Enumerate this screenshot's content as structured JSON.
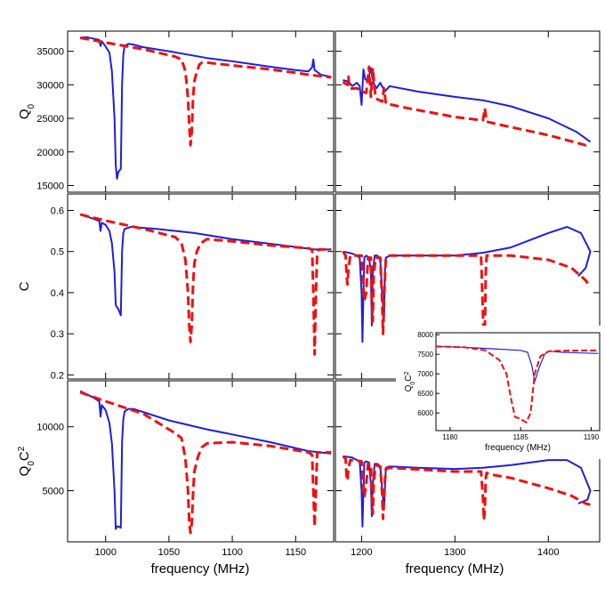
{
  "chart_data": {
    "type": "line",
    "colors": {
      "series_a": "#1f1fdc",
      "series_b": "#ee1111",
      "frame": "#000000"
    },
    "x_label": "frequency (MHz)",
    "row_labels": [
      {
        "main": "Q",
        "sub": "0",
        "rest": "",
        "sup": ""
      },
      {
        "main": "C",
        "sub": "",
        "rest": "",
        "sup": ""
      },
      {
        "main": "Q",
        "sub": "0",
        "rest": "C",
        "sup": "2"
      }
    ],
    "x_ranges": {
      "left": [
        970,
        1180
      ],
      "right": [
        1172,
        1455
      ]
    },
    "x_ticks": {
      "left": [
        1000,
        1050,
        1100,
        1150
      ],
      "left_labels": [
        "1000",
        "1050",
        "1100",
        "1150"
      ],
      "right": [
        1200,
        1300,
        1400
      ],
      "right_labels": [
        "1200",
        "1300",
        "1400"
      ]
    },
    "rows": [
      {
        "ylim": [
          14000,
          38000
        ],
        "yticks": [
          15000,
          20000,
          25000,
          30000,
          35000
        ],
        "ytick_labels": [
          "15000",
          "20000",
          "25000",
          "30000",
          "35000"
        ],
        "series": [
          {
            "name": "solid",
            "style": "solid",
            "x": [
              980,
              985,
              990,
              995,
              996,
              997,
              1000,
              1003,
              1005,
              1007,
              1008,
              1009,
              1010,
              1012,
              1013,
              1014,
              1015,
              1018,
              1022,
              1030,
              1050,
              1080,
              1100,
              1130,
              1150,
              1160,
              1163,
              1164,
              1165,
              1170,
              1178
            ],
            "y": [
              37000,
              37100,
              36900,
              36700,
              35800,
              36500,
              35700,
              34800,
              32000,
              25000,
              18000,
              16000,
              17000,
              17500,
              30000,
              34500,
              35800,
              36100,
              36000,
              35600,
              35000,
              34000,
              33500,
              32700,
              32200,
              32000,
              32600,
              33800,
              32200,
              31500,
              31200
            ]
          },
          {
            "name": "dashed",
            "style": "dashed",
            "x": [
              980,
              1000,
              1030,
              1055,
              1060,
              1063,
              1065,
              1066,
              1067,
              1068,
              1069,
              1070,
              1072,
              1074,
              1076,
              1080,
              1100,
              1130,
              1150,
              1160,
              1170,
              1178
            ],
            "y": [
              37000,
              36300,
              35300,
              34200,
              33800,
              32000,
              28000,
              24000,
              21000,
              23000,
              28000,
              30500,
              32000,
              33000,
              33300,
              33300,
              32900,
              32300,
              31800,
              31500,
              31300,
              31100
            ]
          },
          {
            "name": "solid",
            "style": "solid",
            "x": [
              1180,
              1186,
              1190,
              1195,
              1198,
              1200,
              1202,
              1204,
              1207,
              1210,
              1213,
              1216,
              1220,
              1225,
              1230,
              1260,
              1300,
              1330,
              1360,
              1400,
              1430,
              1445
            ],
            "y": [
              30700,
              30500,
              29800,
              30300,
              29800,
              27000,
              32300,
              30800,
              30600,
              32500,
              30200,
              29500,
              30300,
              29000,
              29800,
              29000,
              28200,
              27700,
              26800,
              25000,
              23000,
              21500
            ]
          },
          {
            "name": "dashed",
            "style": "dashed",
            "x": [
              1180,
              1185,
              1186,
              1187,
              1195,
              1200,
              1205,
              1208,
              1210,
              1212,
              1215,
              1222,
              1224,
              1226,
              1250,
              1300,
              1330,
              1332,
              1334,
              1350,
              1400,
              1440,
              1445
            ],
            "y": [
              30400,
              30000,
              31200,
              29400,
              29500,
              29000,
              28800,
              32700,
              28200,
              32500,
              28000,
              27500,
              29500,
              27200,
              26500,
              25200,
              24700,
              26500,
              24500,
              24000,
              22500,
              21000,
              21200
            ]
          }
        ]
      },
      {
        "ylim": [
          0.19,
          0.64
        ],
        "yticks": [
          0.2,
          0.3,
          0.4,
          0.5,
          0.6
        ],
        "ytick_labels": [
          "0.2",
          "0.3",
          "0.4",
          "0.5",
          "0.6"
        ],
        "series": [
          {
            "name": "solid",
            "style": "solid",
            "x": [
              980,
              990,
              995,
              996,
              997,
              1000,
              1003,
              1005,
              1007,
              1008,
              1009,
              1010,
              1012,
              1013,
              1014,
              1015,
              1020,
              1040,
              1070,
              1100,
              1140,
              1165,
              1178
            ],
            "y": [
              0.59,
              0.58,
              0.574,
              0.55,
              0.57,
              0.565,
              0.55,
              0.52,
              0.45,
              0.37,
              0.365,
              0.36,
              0.345,
              0.5,
              0.545,
              0.555,
              0.56,
              0.555,
              0.545,
              0.53,
              0.515,
              0.505,
              0.505
            ]
          },
          {
            "name": "dashed",
            "style": "dashed",
            "x": [
              980,
              1000,
              1030,
              1055,
              1060,
              1063,
              1065,
              1066,
              1067,
              1068,
              1069,
              1070,
              1072,
              1075,
              1080,
              1100,
              1130,
              1160,
              1163,
              1164,
              1165,
              1166,
              1167,
              1168,
              1178
            ],
            "y": [
              0.59,
              0.575,
              0.555,
              0.535,
              0.52,
              0.48,
              0.4,
              0.32,
              0.28,
              0.32,
              0.42,
              0.47,
              0.5,
              0.52,
              0.53,
              0.525,
              0.515,
              0.508,
              0.505,
              0.4,
              0.25,
              0.4,
              0.495,
              0.505,
              0.505
            ]
          },
          {
            "name": "solid",
            "style": "solid",
            "x": [
              1180,
              1190,
              1195,
              1198,
              1200,
              1201,
              1202,
              1203,
              1205,
              1208,
              1210,
              1211,
              1212,
              1214,
              1217,
              1220,
              1222,
              1224,
              1225,
              1226,
              1228,
              1230,
              1250,
              1300,
              1330,
              1360,
              1400,
              1420,
              1435,
              1445,
              1440,
              1432
            ],
            "y": [
              0.5,
              0.495,
              0.49,
              0.485,
              0.4,
              0.28,
              0.4,
              0.485,
              0.49,
              0.485,
              0.45,
              0.32,
              0.45,
              0.49,
              0.49,
              0.48,
              0.4,
              0.33,
              0.45,
              0.485,
              0.487,
              0.49,
              0.49,
              0.49,
              0.497,
              0.51,
              0.545,
              0.56,
              0.545,
              0.5,
              0.46,
              0.44
            ]
          },
          {
            "name": "dashed",
            "style": "dashed",
            "x": [
              1180,
              1183,
              1184,
              1185,
              1186,
              1188,
              1200,
              1203,
              1205,
              1207,
              1210,
              1211,
              1212,
              1213,
              1215,
              1220,
              1222,
              1223,
              1224,
              1226,
              1230,
              1300,
              1328,
              1330,
              1331,
              1332,
              1333,
              1334,
              1336,
              1360,
              1400,
              1425,
              1440,
              1443,
              1445
            ],
            "y": [
              0.5,
              0.49,
              0.44,
              0.42,
              0.46,
              0.49,
              0.49,
              0.38,
              0.4,
              0.485,
              0.485,
              0.38,
              0.33,
              0.44,
              0.485,
              0.485,
              0.38,
              0.3,
              0.38,
              0.485,
              0.49,
              0.49,
              0.49,
              0.35,
              0.27,
              0.3,
              0.45,
              0.49,
              0.49,
              0.49,
              0.48,
              0.46,
              0.43,
              0.42,
              0.425
            ]
          }
        ]
      },
      {
        "ylim": [
          1000,
          13600
        ],
        "yticks": [
          5000,
          10000
        ],
        "ytick_labels": [
          "5000",
          "10000"
        ],
        "series": [
          {
            "name": "solid",
            "style": "solid",
            "x": [
              980,
              990,
              995,
              996,
              997,
              1000,
              1003,
              1005,
              1007,
              1008,
              1009,
              1010,
              1012,
              1013,
              1014,
              1015,
              1018,
              1022,
              1050,
              1080,
              1100,
              1130,
              1160,
              1178
            ],
            "y": [
              12800,
              12300,
              12000,
              10800,
              11700,
              11300,
              10300,
              8700,
              5000,
              2000,
              2200,
              2200,
              2100,
              8800,
              10600,
              11200,
              11400,
              11400,
              10500,
              9800,
              9400,
              8800,
              8100,
              7900
            ]
          },
          {
            "name": "dashed",
            "style": "dashed",
            "x": [
              980,
              1000,
              1030,
              1055,
              1060,
              1063,
              1065,
              1066,
              1067,
              1068,
              1069,
              1070,
              1073,
              1076,
              1080,
              1100,
              1130,
              1160,
              1163,
              1164,
              1165,
              1166,
              1167,
              1168,
              1178
            ],
            "y": [
              12700,
              12000,
              11000,
              9500,
              9100,
              7500,
              5000,
              2500,
              1700,
              2400,
              4800,
              6500,
              7700,
              8400,
              8700,
              8800,
              8500,
              8000,
              7800,
              5000,
              2200,
              5000,
              7900,
              8000,
              8000
            ]
          },
          {
            "name": "solid",
            "style": "solid",
            "x": [
              1180,
              1190,
              1195,
              1198,
              1200,
              1201,
              1202,
              1203,
              1205,
              1208,
              1210,
              1211,
              1212,
              1214,
              1217,
              1220,
              1222,
              1224,
              1225,
              1226,
              1230,
              1260,
              1300,
              1330,
              1360,
              1400,
              1420,
              1435,
              1445,
              1442,
              1432
            ],
            "y": [
              7700,
              7600,
              7400,
              7300,
              5000,
              2200,
              5000,
              7200,
              7300,
              7200,
              5500,
              3000,
              5500,
              7100,
              7100,
              6900,
              5200,
              3500,
              5000,
              6800,
              6900,
              6800,
              6700,
              6800,
              7000,
              7400,
              7400,
              6800,
              5000,
              4300,
              4000
            ]
          },
          {
            "name": "dashed",
            "style": "dashed",
            "x": [
              1180,
              1183,
              1184,
              1185,
              1186,
              1188,
              1200,
              1203,
              1205,
              1207,
              1210,
              1211,
              1212,
              1213,
              1215,
              1220,
              1222,
              1223,
              1224,
              1226,
              1230,
              1300,
              1328,
              1330,
              1331,
              1332,
              1333,
              1334,
              1336,
              1360,
              1400,
              1425,
              1440,
              1445
            ],
            "y": [
              7700,
              7500,
              6000,
              5800,
              6800,
              7400,
              7300,
              4500,
              5500,
              7100,
              7100,
              4800,
              3200,
              5500,
              7000,
              6900,
              4800,
              2800,
              4800,
              6700,
              6800,
              6500,
              6500,
              4500,
              2700,
              3500,
              6000,
              6400,
              6300,
              6000,
              5200,
              4600,
              4000,
              3900
            ]
          }
        ]
      }
    ],
    "inset": {
      "x_label": "frequency (MHz)",
      "y_label_main": "Q",
      "y_label_sub": "0",
      "y_label_rest": "C",
      "y_label_sup": "2",
      "xlim": [
        1179,
        1190.6
      ],
      "ylim": [
        5550,
        8050
      ],
      "xticks": [
        1180,
        1185,
        1190
      ],
      "xtick_labels": [
        "1180",
        "1185",
        "1190"
      ],
      "yticks": [
        6000,
        6500,
        7000,
        7500,
        8000
      ],
      "ytick_labels": [
        "6000",
        "6500",
        "7000",
        "7500",
        "8000"
      ],
      "series": [
        {
          "name": "solid",
          "style": "solid",
          "x": [
            1179,
            1181,
            1183,
            1185,
            1185.5,
            1185.8,
            1186.0,
            1186.3,
            1186.7,
            1187,
            1188,
            1190.5
          ],
          "y": [
            7700,
            7680,
            7640,
            7600,
            7550,
            7200,
            6800,
            7150,
            7500,
            7580,
            7550,
            7520
          ]
        },
        {
          "name": "dashed",
          "style": "dashed",
          "x": [
            1179,
            1181,
            1182.5,
            1183.5,
            1184.0,
            1184.3,
            1184.6,
            1185.0,
            1185.4,
            1185.7,
            1186.0,
            1186.4,
            1187.0,
            1188,
            1190.5
          ],
          "y": [
            7700,
            7680,
            7600,
            7350,
            7000,
            6400,
            5900,
            5850,
            5760,
            6000,
            7000,
            7450,
            7580,
            7590,
            7600
          ]
        }
      ]
    }
  }
}
